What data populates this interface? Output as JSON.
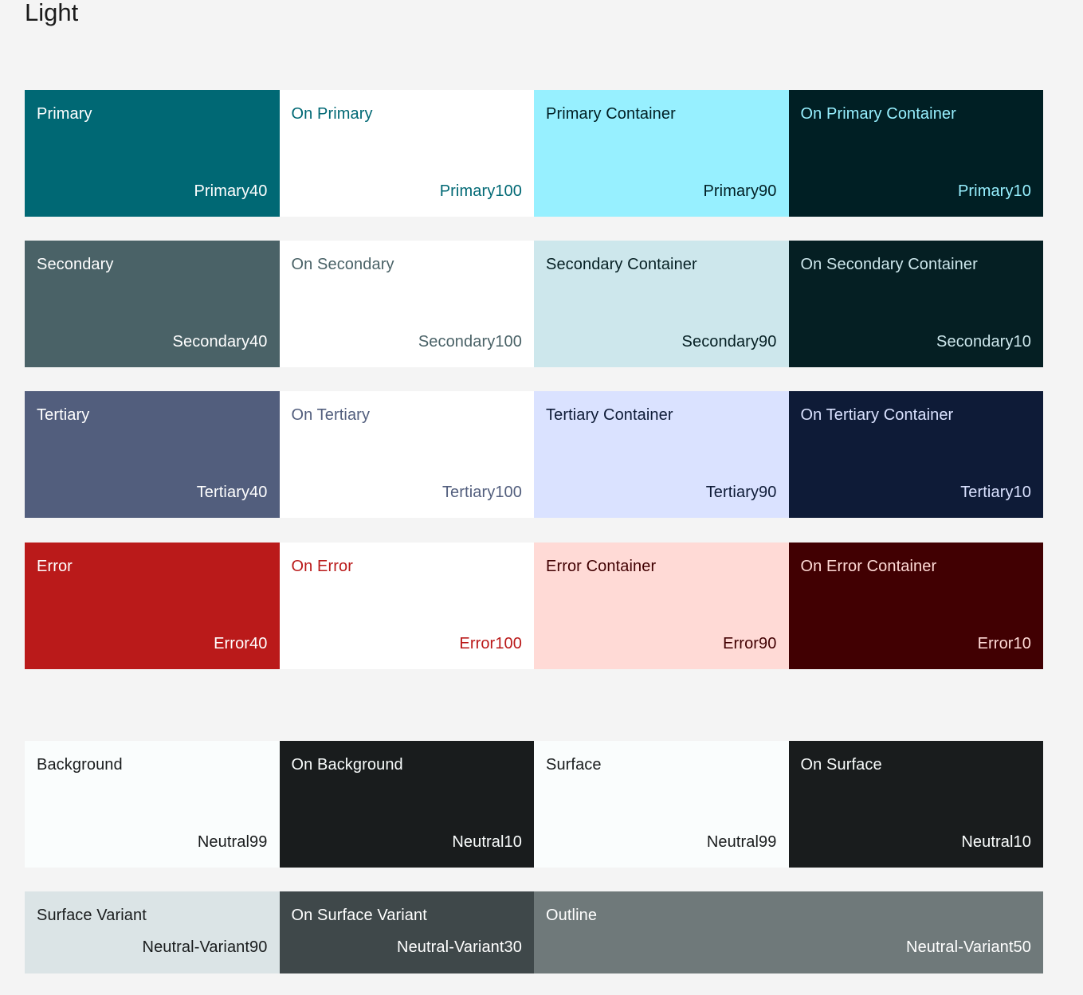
{
  "title": "Light",
  "groups": {
    "primary": [
      {
        "name": "Primary",
        "tone": "Primary40",
        "bg": "#006874",
        "fg": "#ffffff"
      },
      {
        "name": "On Primary",
        "tone": "Primary100",
        "bg": "#ffffff",
        "fg": "#006874"
      },
      {
        "name": "Primary Container",
        "tone": "Primary90",
        "bg": "#97f0ff",
        "fg": "#001f24"
      },
      {
        "name": "On Primary Container",
        "tone": "Primary10",
        "bg": "#001f24",
        "fg": "#97f0ff"
      }
    ],
    "secondary": [
      {
        "name": "Secondary",
        "tone": "Secondary40",
        "bg": "#4a6267",
        "fg": "#ffffff"
      },
      {
        "name": "On Secondary",
        "tone": "Secondary100",
        "bg": "#ffffff",
        "fg": "#4a6267"
      },
      {
        "name": "Secondary Container",
        "tone": "Secondary90",
        "bg": "#cde7ec",
        "fg": "#051f23"
      },
      {
        "name": "On Secondary Container",
        "tone": "Secondary10",
        "bg": "#051f23",
        "fg": "#cde7ec"
      }
    ],
    "tertiary": [
      {
        "name": "Tertiary",
        "tone": "Tertiary40",
        "bg": "#525e7d",
        "fg": "#ffffff"
      },
      {
        "name": "On Tertiary",
        "tone": "Tertiary100",
        "bg": "#ffffff",
        "fg": "#525e7d"
      },
      {
        "name": "Tertiary Container",
        "tone": "Tertiary90",
        "bg": "#dae2ff",
        "fg": "#0e1b37"
      },
      {
        "name": "On Tertiary Container",
        "tone": "Tertiary10",
        "bg": "#0e1b37",
        "fg": "#dae2ff"
      }
    ],
    "error": [
      {
        "name": "Error",
        "tone": "Error40",
        "bg": "#ba1a1a",
        "fg": "#ffffff"
      },
      {
        "name": "On Error",
        "tone": "Error100",
        "bg": "#ffffff",
        "fg": "#ba1a1a"
      },
      {
        "name": "Error Container",
        "tone": "Error90",
        "bg": "#ffdad6",
        "fg": "#410002"
      },
      {
        "name": "On Error Container",
        "tone": "Error10",
        "bg": "#410002",
        "fg": "#ffdad6"
      }
    ],
    "neutral": [
      {
        "name": "Background",
        "tone": "Neutral99",
        "bg": "#fafdfd",
        "fg": "#191c1d"
      },
      {
        "name": "On Background",
        "tone": "Neutral10",
        "bg": "#191c1d",
        "fg": "#fafdfd"
      },
      {
        "name": "Surface",
        "tone": "Neutral99",
        "bg": "#fafdfd",
        "fg": "#191c1d"
      },
      {
        "name": "On Surface",
        "tone": "Neutral10",
        "bg": "#191c1d",
        "fg": "#fafdfd"
      }
    ],
    "variant": [
      {
        "name": "Surface Variant",
        "tone": "Neutral-Variant90",
        "bg": "#dbe4e6",
        "fg": "#191c1d"
      },
      {
        "name": "On Surface Variant",
        "tone": "Neutral-Variant30",
        "bg": "#3f484a",
        "fg": "#ffffff"
      },
      {
        "name": "Outline",
        "tone": "Neutral-Variant50",
        "bg": "#6f797a",
        "fg": "#ffffff"
      }
    ]
  }
}
